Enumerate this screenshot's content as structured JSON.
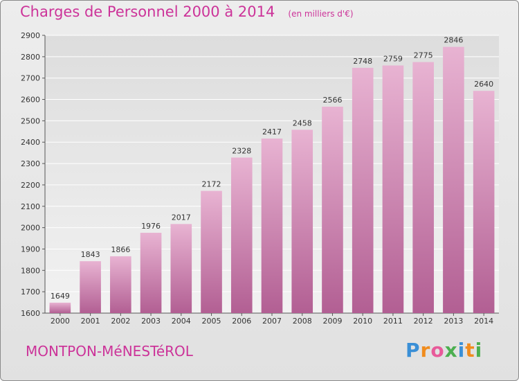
{
  "header": {
    "title": "Charges de Personnel 2000 à 2014",
    "unit": "(en milliers d'€)"
  },
  "footer": {
    "commune": "MONTPON-MéNESTéROL",
    "brand": "Proxiti"
  },
  "colors": {
    "accent": "#cc3399",
    "bar_light": "#e8b3d2",
    "bar_dark": "#b25f93",
    "brand_letters": [
      "#3a8fd6",
      "#f08c1e",
      "#e85a9a",
      "#4caf50",
      "#3a8fd6",
      "#f08c1e",
      "#4caf50"
    ]
  },
  "chart_data": {
    "type": "bar",
    "title": "Charges de Personnel 2000 à 2014",
    "subtitle": "(en milliers d'€)",
    "xlabel": "",
    "ylabel": "",
    "categories": [
      "2000",
      "2001",
      "2002",
      "2003",
      "2004",
      "2005",
      "2006",
      "2007",
      "2008",
      "2009",
      "2010",
      "2011",
      "2012",
      "2013",
      "2014"
    ],
    "values": [
      1649,
      1843,
      1866,
      1976,
      2017,
      2172,
      2328,
      2417,
      2458,
      2566,
      2748,
      2759,
      2775,
      2846,
      2640
    ],
    "ylim": [
      1600,
      2900
    ],
    "yticks": [
      1600,
      1700,
      1800,
      1900,
      2000,
      2100,
      2200,
      2300,
      2400,
      2500,
      2600,
      2700,
      2800,
      2900
    ],
    "grid": true,
    "legend": "none"
  }
}
